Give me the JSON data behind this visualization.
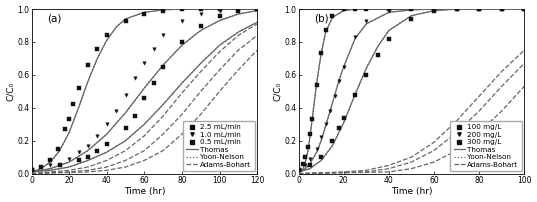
{
  "panel_a": {
    "label": "(a)",
    "xlabel": "Time (hr)",
    "ylabel": "C/C₀",
    "xlim": [
      0,
      120
    ],
    "ylim": [
      0,
      1.0
    ],
    "xticks": [
      0,
      20,
      40,
      60,
      80,
      100,
      120
    ],
    "yticks": [
      0.0,
      0.2,
      0.4,
      0.6,
      0.8,
      1.0
    ],
    "series": [
      {
        "label": "2.5 mL/min",
        "marker": "s",
        "data_x": [
          0,
          5,
          10,
          14,
          18,
          20,
          22,
          25,
          30,
          35,
          40,
          50,
          60,
          70,
          80,
          90,
          100,
          110,
          120
        ],
        "data_y": [
          0.02,
          0.04,
          0.08,
          0.15,
          0.27,
          0.33,
          0.42,
          0.52,
          0.66,
          0.76,
          0.84,
          0.93,
          0.97,
          0.99,
          1.0,
          1.0,
          1.0,
          1.0,
          1.0
        ]
      },
      {
        "label": "1.0 mL/min",
        "marker": "v",
        "data_x": [
          0,
          10,
          20,
          25,
          30,
          35,
          40,
          45,
          50,
          55,
          60,
          65,
          70,
          80,
          90,
          100,
          110,
          120
        ],
        "data_y": [
          0.02,
          0.05,
          0.09,
          0.13,
          0.17,
          0.23,
          0.3,
          0.38,
          0.48,
          0.58,
          0.67,
          0.76,
          0.84,
          0.93,
          0.97,
          0.99,
          1.0,
          1.0
        ]
      },
      {
        "label": "0.5 mL/min",
        "marker": "s",
        "data_x": [
          0,
          15,
          25,
          30,
          35,
          40,
          50,
          55,
          60,
          65,
          70,
          80,
          90,
          100,
          110,
          120
        ],
        "data_y": [
          0.02,
          0.05,
          0.08,
          0.1,
          0.14,
          0.18,
          0.28,
          0.35,
          0.46,
          0.55,
          0.65,
          0.8,
          0.9,
          0.96,
          0.99,
          1.0
        ]
      }
    ],
    "thomas_curves": [
      {
        "x": [
          0,
          5,
          10,
          15,
          20,
          25,
          30,
          35,
          40,
          45,
          50,
          60,
          70,
          80,
          90,
          100,
          110,
          120
        ],
        "y": [
          0.01,
          0.03,
          0.07,
          0.14,
          0.25,
          0.4,
          0.56,
          0.7,
          0.81,
          0.89,
          0.94,
          0.98,
          0.995,
          1.0,
          1.0,
          1.0,
          1.0,
          1.0
        ]
      },
      {
        "x": [
          0,
          10,
          20,
          30,
          40,
          50,
          60,
          70,
          80,
          90,
          100,
          110,
          120
        ],
        "y": [
          0.01,
          0.03,
          0.07,
          0.14,
          0.24,
          0.37,
          0.52,
          0.66,
          0.78,
          0.87,
          0.93,
          0.97,
          0.99
        ]
      },
      {
        "x": [
          0,
          10,
          20,
          30,
          40,
          50,
          60,
          70,
          80,
          90,
          100,
          110,
          120
        ],
        "y": [
          0.01,
          0.02,
          0.04,
          0.08,
          0.13,
          0.2,
          0.3,
          0.42,
          0.55,
          0.67,
          0.78,
          0.86,
          0.92
        ]
      }
    ],
    "yoon_curves": [
      {
        "x": [
          0,
          5,
          10,
          15,
          20,
          25,
          30,
          35,
          40,
          45,
          50,
          60,
          70,
          80,
          90,
          100,
          110,
          120
        ],
        "y": [
          0.01,
          0.03,
          0.07,
          0.14,
          0.25,
          0.4,
          0.56,
          0.7,
          0.81,
          0.89,
          0.94,
          0.98,
          0.995,
          1.0,
          1.0,
          1.0,
          1.0,
          1.0
        ]
      },
      {
        "x": [
          0,
          10,
          20,
          30,
          40,
          50,
          60,
          70,
          80,
          90,
          100,
          110,
          120
        ],
        "y": [
          0.01,
          0.03,
          0.07,
          0.14,
          0.24,
          0.37,
          0.52,
          0.66,
          0.78,
          0.87,
          0.93,
          0.97,
          0.99
        ]
      },
      {
        "x": [
          0,
          10,
          20,
          30,
          40,
          50,
          60,
          70,
          80,
          90,
          100,
          110,
          120
        ],
        "y": [
          0.01,
          0.02,
          0.04,
          0.08,
          0.13,
          0.2,
          0.3,
          0.42,
          0.55,
          0.67,
          0.78,
          0.86,
          0.92
        ]
      }
    ],
    "adams_curves": [
      {
        "x": [
          0,
          10,
          20,
          30,
          40,
          50,
          60,
          70,
          80,
          90,
          100,
          110,
          120
        ],
        "y": [
          0.0,
          0.01,
          0.02,
          0.04,
          0.08,
          0.14,
          0.23,
          0.35,
          0.49,
          0.62,
          0.74,
          0.84,
          0.91
        ]
      },
      {
        "x": [
          0,
          20,
          30,
          40,
          50,
          60,
          70,
          80,
          90,
          100,
          110,
          120
        ],
        "y": [
          0.0,
          0.01,
          0.02,
          0.04,
          0.08,
          0.14,
          0.24,
          0.36,
          0.5,
          0.63,
          0.75,
          0.84
        ]
      },
      {
        "x": [
          0,
          30,
          40,
          50,
          60,
          70,
          80,
          90,
          100,
          110,
          120
        ],
        "y": [
          0.0,
          0.01,
          0.02,
          0.04,
          0.08,
          0.14,
          0.24,
          0.36,
          0.5,
          0.63,
          0.75
        ]
      }
    ]
  },
  "panel_b": {
    "label": "(b)",
    "xlabel": "Time (hr)",
    "ylabel": "C/C₀",
    "xlim": [
      0,
      100
    ],
    "ylim": [
      0,
      1.0
    ],
    "xticks": [
      0,
      20,
      40,
      60,
      80,
      100
    ],
    "yticks": [
      0.0,
      0.2,
      0.4,
      0.6,
      0.8,
      1.0
    ],
    "series": [
      {
        "label": "100 mg/L",
        "marker": "s",
        "data_x": [
          0,
          5,
          10,
          15,
          18,
          20,
          25,
          30,
          35,
          40,
          50,
          60,
          70,
          80,
          90,
          100
        ],
        "data_y": [
          0.02,
          0.05,
          0.1,
          0.2,
          0.28,
          0.34,
          0.48,
          0.6,
          0.72,
          0.82,
          0.94,
          0.99,
          1.0,
          1.0,
          1.0,
          1.0
        ]
      },
      {
        "label": "200 mg/L",
        "marker": "v",
        "data_x": [
          0,
          3,
          5,
          8,
          10,
          12,
          14,
          16,
          18,
          20,
          25,
          30,
          40,
          50,
          60,
          70,
          80,
          90,
          100
        ],
        "data_y": [
          0.02,
          0.05,
          0.09,
          0.15,
          0.22,
          0.3,
          0.38,
          0.47,
          0.56,
          0.65,
          0.83,
          0.93,
          0.99,
          1.0,
          1.0,
          1.0,
          1.0,
          1.0,
          1.0
        ]
      },
      {
        "label": "300 mg/L",
        "marker": "s",
        "data_x": [
          0,
          2,
          3,
          4,
          5,
          6,
          8,
          10,
          12,
          15,
          20,
          25,
          30,
          40,
          50,
          60,
          70,
          80,
          90,
          100
        ],
        "data_y": [
          0.02,
          0.06,
          0.1,
          0.16,
          0.24,
          0.33,
          0.54,
          0.73,
          0.87,
          0.96,
          1.0,
          1.0,
          1.0,
          1.0,
          1.0,
          1.0,
          1.0,
          1.0,
          1.0,
          1.0
        ]
      }
    ],
    "thomas_curves": [
      {
        "x": [
          0,
          5,
          10,
          15,
          20,
          25,
          30,
          35,
          40,
          50,
          60,
          70,
          80,
          90,
          100
        ],
        "y": [
          0.01,
          0.03,
          0.08,
          0.17,
          0.31,
          0.48,
          0.64,
          0.77,
          0.87,
          0.96,
          0.99,
          1.0,
          1.0,
          1.0,
          1.0
        ]
      },
      {
        "x": [
          0,
          3,
          5,
          8,
          10,
          12,
          15,
          18,
          20,
          25,
          30,
          40,
          50,
          60,
          70,
          80,
          90,
          100
        ],
        "y": [
          0.01,
          0.03,
          0.06,
          0.13,
          0.2,
          0.29,
          0.43,
          0.57,
          0.65,
          0.82,
          0.91,
          0.98,
          0.995,
          1.0,
          1.0,
          1.0,
          1.0,
          1.0
        ]
      },
      {
        "x": [
          0,
          2,
          3,
          4,
          5,
          6,
          8,
          10,
          12,
          15,
          20,
          25,
          30,
          40,
          50,
          60,
          70,
          80,
          90,
          100
        ],
        "y": [
          0.01,
          0.03,
          0.07,
          0.13,
          0.22,
          0.33,
          0.55,
          0.73,
          0.86,
          0.95,
          0.99,
          1.0,
          1.0,
          1.0,
          1.0,
          1.0,
          1.0,
          1.0,
          1.0,
          1.0
        ]
      }
    ],
    "yoon_curves": [
      {
        "x": [
          0,
          5,
          10,
          15,
          20,
          25,
          30,
          35,
          40,
          50,
          60,
          70,
          80,
          90,
          100
        ],
        "y": [
          0.01,
          0.03,
          0.08,
          0.17,
          0.31,
          0.48,
          0.64,
          0.77,
          0.87,
          0.96,
          0.99,
          1.0,
          1.0,
          1.0,
          1.0
        ]
      },
      {
        "x": [
          0,
          3,
          5,
          8,
          10,
          12,
          15,
          18,
          20,
          25,
          30,
          40,
          50,
          60,
          70,
          80,
          90,
          100
        ],
        "y": [
          0.01,
          0.03,
          0.06,
          0.13,
          0.2,
          0.29,
          0.43,
          0.57,
          0.65,
          0.82,
          0.91,
          0.98,
          0.995,
          1.0,
          1.0,
          1.0,
          1.0,
          1.0
        ]
      },
      {
        "x": [
          0,
          2,
          3,
          4,
          5,
          6,
          8,
          10,
          12,
          15,
          20,
          25,
          30,
          40,
          50,
          60,
          70,
          80,
          90,
          100
        ],
        "y": [
          0.01,
          0.03,
          0.07,
          0.13,
          0.22,
          0.33,
          0.55,
          0.73,
          0.86,
          0.95,
          0.99,
          1.0,
          1.0,
          1.0,
          1.0,
          1.0,
          1.0,
          1.0,
          1.0,
          1.0
        ]
      }
    ],
    "adams_curves": [
      {
        "x": [
          0,
          20,
          30,
          40,
          50,
          60,
          70,
          80,
          90,
          100
        ],
        "y": [
          0.0,
          0.01,
          0.02,
          0.05,
          0.1,
          0.19,
          0.32,
          0.47,
          0.62,
          0.75
        ]
      },
      {
        "x": [
          0,
          30,
          40,
          50,
          60,
          70,
          80,
          90,
          100
        ],
        "y": [
          0.0,
          0.01,
          0.03,
          0.07,
          0.14,
          0.25,
          0.38,
          0.53,
          0.67
        ]
      },
      {
        "x": [
          0,
          40,
          50,
          60,
          70,
          80,
          90,
          100
        ],
        "y": [
          0.0,
          0.01,
          0.03,
          0.07,
          0.14,
          0.25,
          0.38,
          0.53
        ]
      }
    ]
  },
  "line_color": "#666666",
  "marker_color": "#111111",
  "thomas_lw": 0.9,
  "yoon_lw": 0.9,
  "adams_lw": 0.9,
  "legend_fontsize": 5.2,
  "axis_fontsize": 6.5,
  "tick_fontsize": 5.5,
  "panel_label_fontsize": 7.5
}
